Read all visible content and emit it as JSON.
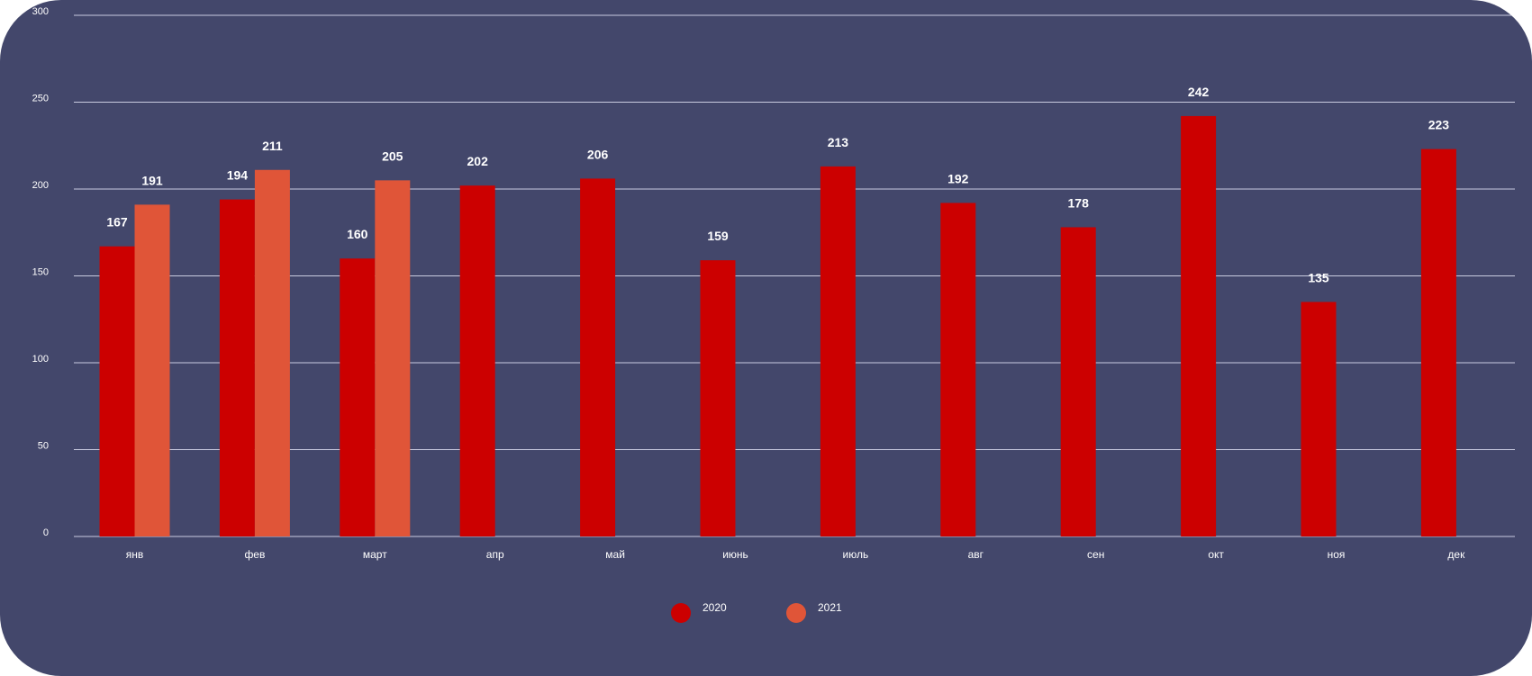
{
  "chart_data": {
    "type": "bar",
    "categories": [
      "янв",
      "фев",
      "март",
      "апр",
      "май",
      "июнь",
      "июль",
      "авг",
      "сен",
      "окт",
      "ноя",
      "дек"
    ],
    "series": [
      {
        "name": "2020",
        "color": "#cc0000",
        "values": [
          167,
          194,
          160,
          202,
          206,
          159,
          213,
          192,
          178,
          242,
          135,
          223
        ]
      },
      {
        "name": "2021",
        "color": "#e05538",
        "values": [
          191,
          211,
          205,
          null,
          null,
          null,
          null,
          null,
          null,
          null,
          null,
          null
        ]
      }
    ],
    "y_ticks": [
      "0",
      "50",
      "100",
      "150",
      "200",
      "250",
      "300"
    ],
    "ylim": [
      0,
      300
    ],
    "grid": true,
    "legend_position": "bottom-center",
    "title": "",
    "xlabel": "",
    "ylabel": ""
  },
  "colors": {
    "background": "#43476b",
    "gridline": "#c9cbe0",
    "text": "#ffffff"
  }
}
